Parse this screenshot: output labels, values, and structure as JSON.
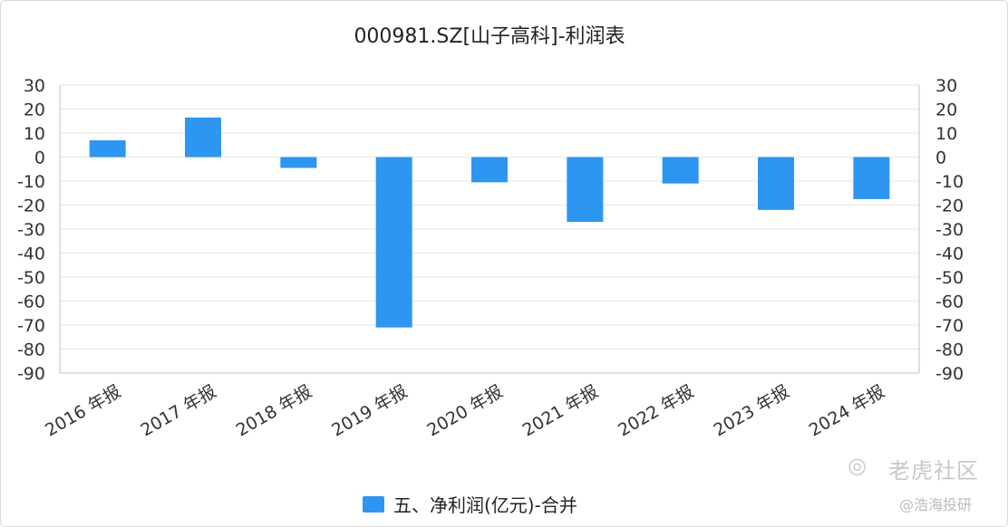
{
  "chart_data": {
    "type": "bar",
    "title": "000981.SZ[山子高科]-利润表",
    "categories": [
      "2016 年报",
      "2017 年报",
      "2018 年报",
      "2019 年报",
      "2020 年报",
      "2021 年报",
      "2022 年报",
      "2023 年报",
      "2024 年报"
    ],
    "series": [
      {
        "name": "五、净利润(亿元)-合并",
        "values": [
          7,
          16.5,
          -4.5,
          -71,
          -10.5,
          -27,
          -11,
          -22,
          -17.5
        ],
        "color": "#2d96f0"
      }
    ],
    "ylim": [
      -90,
      30
    ],
    "yticks": [
      30,
      20,
      10,
      0,
      -10,
      -20,
      -30,
      -40,
      -50,
      -60,
      -70,
      -80,
      -90
    ],
    "y2ticks": [
      30,
      20,
      10,
      0,
      -10,
      -20,
      -30,
      -40,
      -50,
      -60,
      -70,
      -80,
      -90
    ],
    "grid": true,
    "legend_position": "bottom"
  },
  "watermark": {
    "logo": "◎",
    "text": "老虎社区",
    "sub": "@浩海投研"
  }
}
